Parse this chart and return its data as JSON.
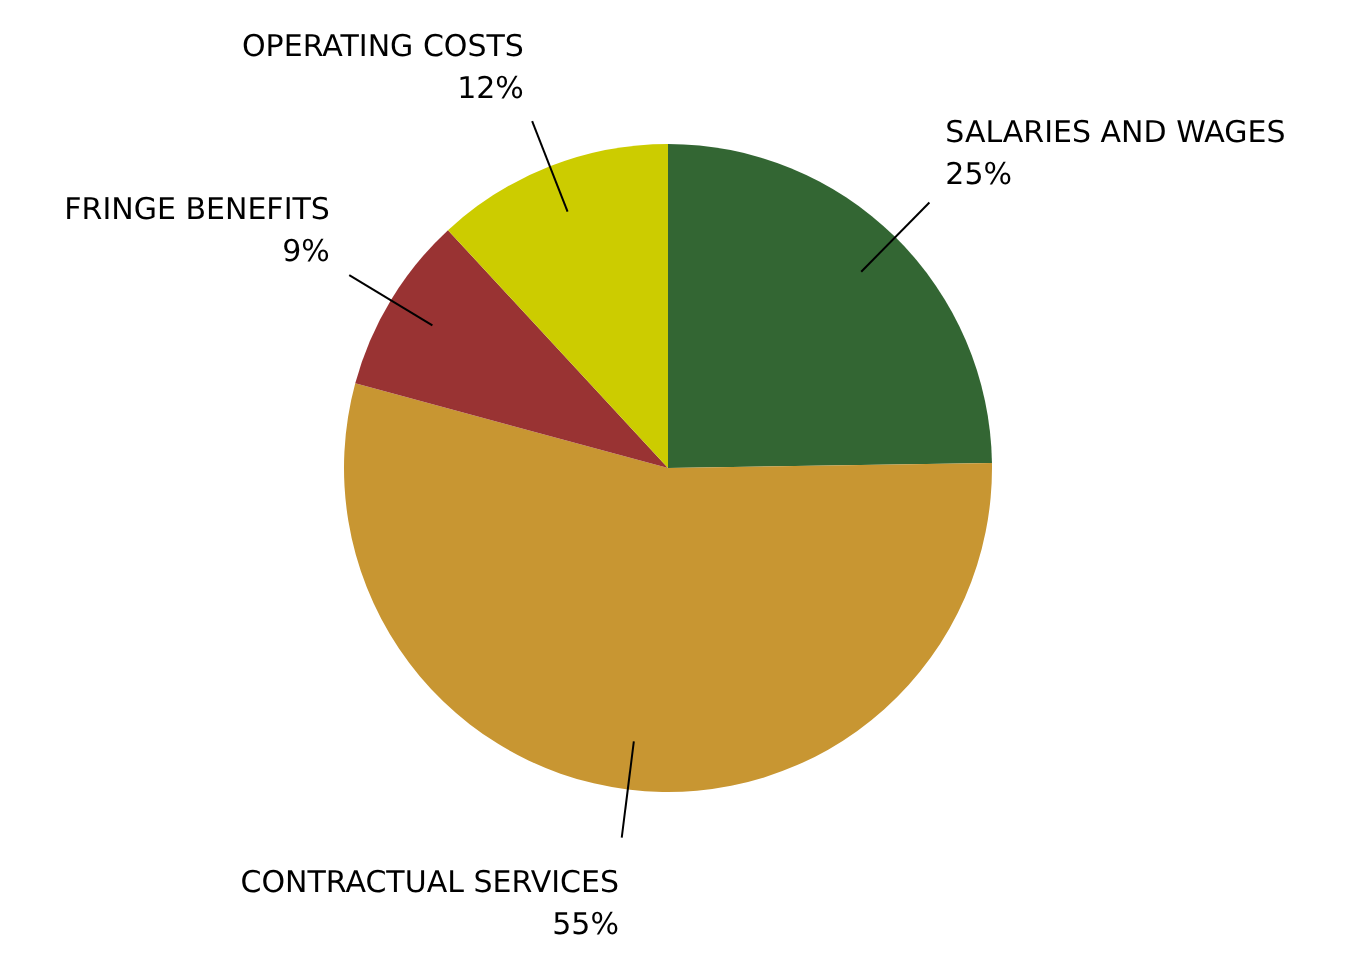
{
  "chart_data": {
    "type": "pie",
    "categories": [
      "SALARIES AND WAGES",
      "CONTRACTUAL SERVICES",
      "FRINGE BENEFITS",
      "OPERATING COSTS"
    ],
    "values": [
      25,
      55,
      9,
      12
    ],
    "value_labels": [
      "25%",
      "55%",
      "9%",
      "12%"
    ],
    "colors": [
      "#336633",
      "#c89632",
      "#993333",
      "#cccc00"
    ]
  }
}
